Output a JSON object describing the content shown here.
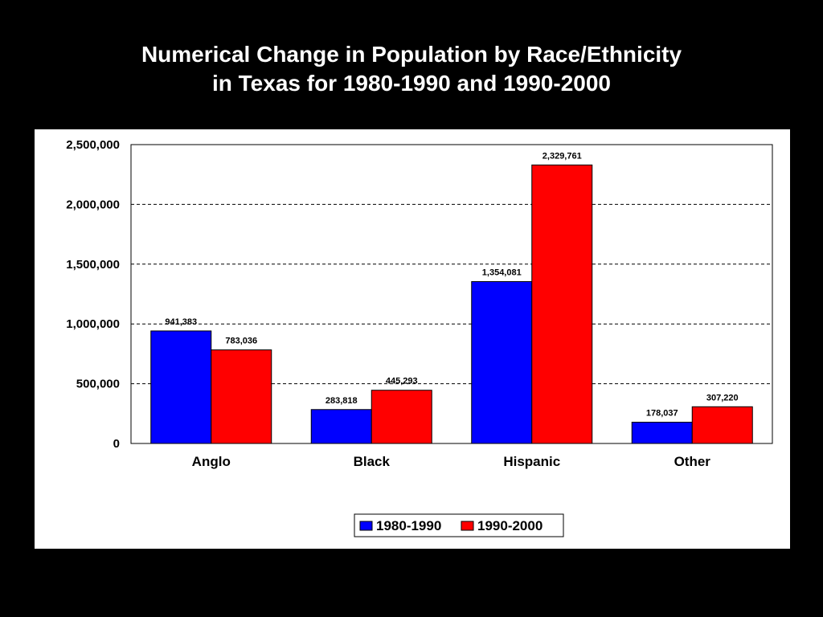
{
  "title": {
    "line1": "Numerical Change in Population by Race/Ethnicity",
    "line2": "in Texas for 1980-1990 and 1990-2000"
  },
  "chart_data": {
    "type": "bar",
    "categories": [
      "Anglo",
      "Black",
      "Hispanic",
      "Other"
    ],
    "series": [
      {
        "name": "1980-1990",
        "color": "#0000ff",
        "values": [
          941383,
          283818,
          1354081,
          178037
        ],
        "labels": [
          "941,383",
          "283,818",
          "1,354,081",
          "178,037"
        ]
      },
      {
        "name": "1990-2000",
        "color": "#ff0000",
        "values": [
          783036,
          445293,
          2329761,
          307220
        ],
        "labels": [
          "783,036",
          "445,293",
          "2,329,761",
          "307,220"
        ]
      }
    ],
    "ylim": [
      0,
      2500000
    ],
    "yticks": [
      0,
      500000,
      1000000,
      1500000,
      2000000,
      2500000
    ],
    "ytick_labels": [
      "0",
      "500,000",
      "1,000,000",
      "1,500,000",
      "2,000,000",
      "2,500,000"
    ],
    "grid": "dashed horizontal",
    "legend_position": "bottom-center"
  }
}
